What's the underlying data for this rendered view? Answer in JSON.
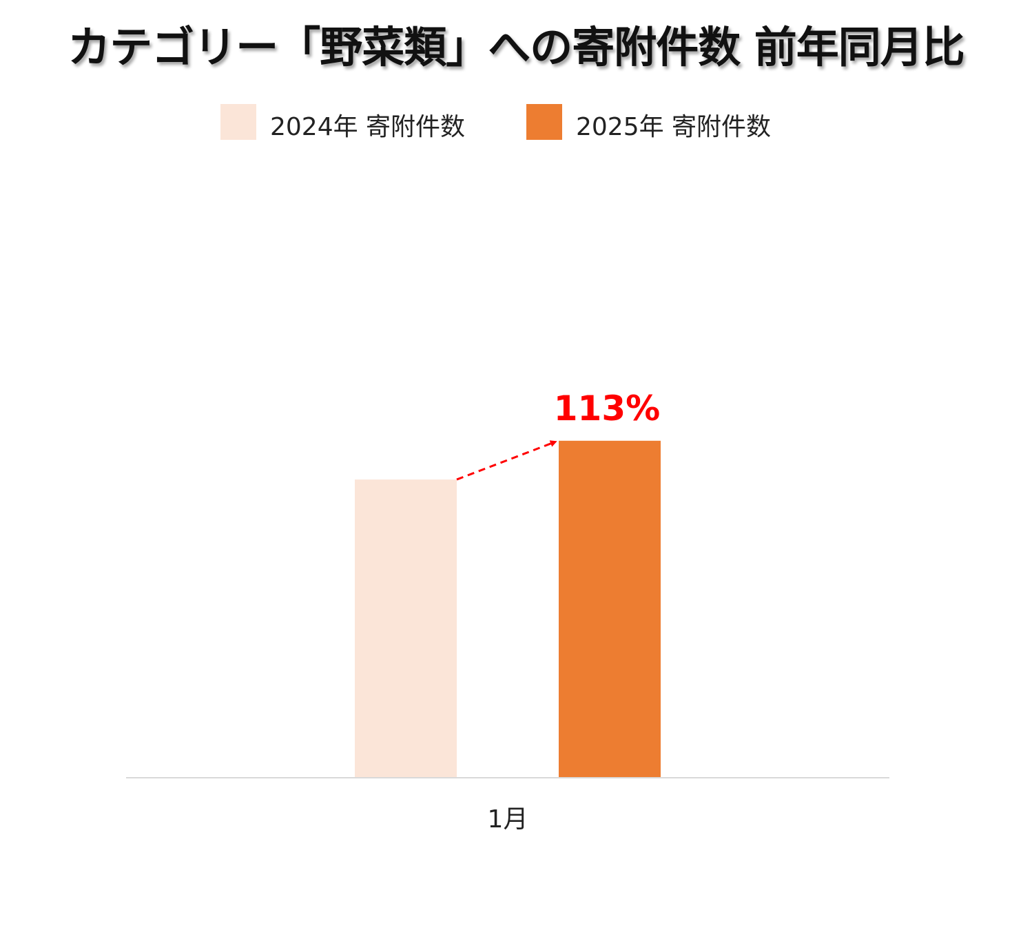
{
  "title": "カテゴリー「野菜類」への寄附件数 前年同月比",
  "legend": {
    "items": [
      {
        "label": "2024年 寄附件数",
        "color": "#FBE5D8"
      },
      {
        "label": "2025年 寄附件数",
        "color": "#ED7D31"
      }
    ]
  },
  "chart_data": {
    "type": "bar",
    "title": "カテゴリー「野菜類」への寄附件数 前年同月比",
    "categories": [
      "1月"
    ],
    "series": [
      {
        "name": "2024年 寄附件数",
        "values": [
          100
        ],
        "color": "#FBE5D8"
      },
      {
        "name": "2025年 寄附件数",
        "values": [
          113
        ],
        "color": "#ED7D31"
      }
    ],
    "annotations": [
      {
        "text": "113%",
        "color": "#FF0000",
        "style": "dashed-arrow",
        "from_series": 0,
        "to_series": 1
      }
    ],
    "ylim": [
      0,
      240
    ],
    "grid": false,
    "legend_position": "top"
  }
}
